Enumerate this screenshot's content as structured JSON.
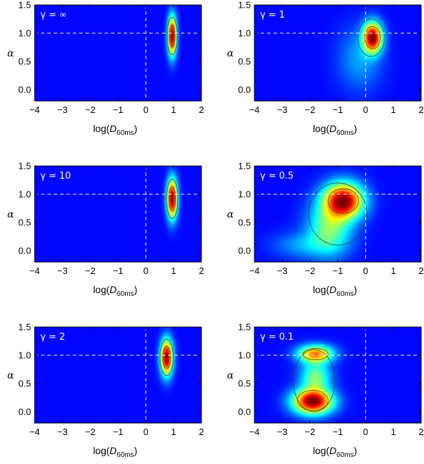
{
  "chart_data": [
    {
      "type": "heatmap",
      "label": "γ = ∞",
      "x_label_main": "log(",
      "x_label_var": "D",
      "x_label_sub": "60ms",
      "x_label_close": ")",
      "ylabel": "α",
      "xlim": [
        -4,
        2
      ],
      "ylim": [
        -0.2,
        1.5
      ],
      "xticks": [
        -4,
        -3,
        -2,
        -1,
        0,
        1,
        2
      ],
      "yticks": [
        0.0,
        0.5,
        1.0,
        1.5
      ],
      "x_tick_labels": [
        "−4",
        "−3",
        "−2",
        "−1",
        "0",
        "1",
        "2"
      ],
      "y_tick_labels": [
        "0.0",
        "0.5",
        "1.0",
        "1.5"
      ],
      "reference_lines": {
        "x": 0,
        "y": 1.0
      },
      "blobs": [
        {
          "cx": 0.95,
          "cy": 0.95,
          "sx": 0.1,
          "sy": 0.22,
          "w": 1.0
        }
      ],
      "contours": [
        {
          "cx": 0.95,
          "cy": 0.95,
          "rx": 0.18,
          "ry": 0.33
        },
        {
          "cx": 0.95,
          "cy": 0.95,
          "rx": 0.1,
          "ry": 0.2
        }
      ]
    },
    {
      "type": "heatmap",
      "label": "γ = 1",
      "x_label_main": "log(",
      "x_label_var": "D",
      "x_label_sub": "60ms",
      "x_label_close": ")",
      "ylabel": "α",
      "xlim": [
        -4,
        2
      ],
      "ylim": [
        -0.2,
        1.5
      ],
      "xticks": [
        -4,
        -3,
        -2,
        -1,
        0,
        1,
        2
      ],
      "yticks": [
        0.0,
        0.5,
        1.0,
        1.5
      ],
      "x_tick_labels": [
        "−4",
        "−3",
        "−2",
        "−1",
        "0",
        "1",
        "2"
      ],
      "y_tick_labels": [
        "0.0",
        "0.5",
        "1.0",
        "1.5"
      ],
      "reference_lines": {
        "x": 0,
        "y": 1.0
      },
      "blobs": [
        {
          "cx": 0.25,
          "cy": 0.92,
          "sx": 0.22,
          "sy": 0.17,
          "w": 1.0
        },
        {
          "cx": -0.2,
          "cy": 0.55,
          "sx": 0.5,
          "sy": 0.35,
          "w": 0.12
        }
      ],
      "contours": [
        {
          "cx": 0.2,
          "cy": 0.92,
          "rx": 0.48,
          "ry": 0.33
        },
        {
          "cx": 0.25,
          "cy": 0.92,
          "rx": 0.28,
          "ry": 0.2
        }
      ]
    },
    {
      "type": "heatmap",
      "label": "γ = 10",
      "x_label_main": "log(",
      "x_label_var": "D",
      "x_label_sub": "60ms",
      "x_label_close": ")",
      "ylabel": "α",
      "xlim": [
        -4,
        2
      ],
      "ylim": [
        -0.2,
        1.5
      ],
      "xticks": [
        -4,
        -3,
        -2,
        -1,
        0,
        1,
        2
      ],
      "yticks": [
        0.0,
        0.5,
        1.0,
        1.5
      ],
      "x_tick_labels": [
        "−4",
        "−3",
        "−2",
        "−1",
        "0",
        "1",
        "2"
      ],
      "y_tick_labels": [
        "0.0",
        "0.5",
        "1.0",
        "1.5"
      ],
      "reference_lines": {
        "x": 0,
        "y": 1.0
      },
      "blobs": [
        {
          "cx": 0.95,
          "cy": 0.92,
          "sx": 0.12,
          "sy": 0.22,
          "w": 1.0
        }
      ],
      "contours": [
        {
          "cx": 0.95,
          "cy": 0.92,
          "rx": 0.2,
          "ry": 0.35
        },
        {
          "cx": 0.95,
          "cy": 0.92,
          "rx": 0.12,
          "ry": 0.22
        }
      ]
    },
    {
      "type": "heatmap",
      "label": "γ = 0.5",
      "x_label_main": "log(",
      "x_label_var": "D",
      "x_label_sub": "60ms",
      "x_label_close": ")",
      "ylabel": "α",
      "xlim": [
        -4,
        2
      ],
      "ylim": [
        -0.2,
        1.5
      ],
      "xticks": [
        -4,
        -3,
        -2,
        -1,
        0,
        1,
        2
      ],
      "yticks": [
        0.0,
        0.5,
        1.0,
        1.5
      ],
      "x_tick_labels": [
        "−4",
        "−3",
        "−2",
        "−1",
        "0",
        "1",
        "2"
      ],
      "y_tick_labels": [
        "0.0",
        "0.5",
        "1.0",
        "1.5"
      ],
      "reference_lines": {
        "x": 0,
        "y": 1.0
      },
      "blobs": [
        {
          "cx": -0.8,
          "cy": 0.88,
          "sx": 0.45,
          "sy": 0.2,
          "w": 1.0
        },
        {
          "cx": -1.3,
          "cy": 0.4,
          "sx": 0.5,
          "sy": 0.3,
          "w": 0.35
        },
        {
          "cx": -2.2,
          "cy": 0.1,
          "sx": 0.7,
          "sy": 0.15,
          "w": 0.12
        }
      ],
      "contours": [
        {
          "cx": -0.8,
          "cy": 0.88,
          "rx": 0.55,
          "ry": 0.22
        },
        {
          "cx": -1.0,
          "cy": 0.65,
          "rx": 1.05,
          "ry": 0.55
        }
      ]
    },
    {
      "type": "heatmap",
      "label": "γ = 2",
      "x_label_main": "log(",
      "x_label_var": "D",
      "x_label_sub": "60ms",
      "x_label_close": ")",
      "ylabel": "α",
      "xlim": [
        -4,
        2
      ],
      "ylim": [
        -0.2,
        1.5
      ],
      "xticks": [
        -4,
        -3,
        -2,
        -1,
        0,
        1,
        2
      ],
      "yticks": [
        0.0,
        0.5,
        1.0,
        1.5
      ],
      "x_tick_labels": [
        "−4",
        "−3",
        "−2",
        "−1",
        "0",
        "1",
        "2"
      ],
      "y_tick_labels": [
        "0.0",
        "0.5",
        "1.0",
        "1.5"
      ],
      "reference_lines": {
        "x": 0,
        "y": 1.0
      },
      "blobs": [
        {
          "cx": 0.75,
          "cy": 0.96,
          "sx": 0.14,
          "sy": 0.2,
          "w": 1.0
        }
      ],
      "contours": [
        {
          "cx": 0.75,
          "cy": 0.96,
          "rx": 0.24,
          "ry": 0.32
        },
        {
          "cx": 0.75,
          "cy": 0.96,
          "rx": 0.14,
          "ry": 0.2
        }
      ]
    },
    {
      "type": "heatmap",
      "label": "γ = 0.1",
      "x_label_main": "log(",
      "x_label_var": "D",
      "x_label_sub": "60ms",
      "x_label_close": ")",
      "ylabel": "α",
      "xlim": [
        -4,
        2
      ],
      "ylim": [
        -0.2,
        1.5
      ],
      "xticks": [
        -4,
        -3,
        -2,
        -1,
        0,
        1,
        2
      ],
      "yticks": [
        0.0,
        0.5,
        1.0,
        1.5
      ],
      "x_tick_labels": [
        "−4",
        "−3",
        "−2",
        "−1",
        "0",
        "1",
        "2"
      ],
      "y_tick_labels": [
        "0.0",
        "0.5",
        "1.0",
        "1.5"
      ],
      "reference_lines": {
        "x": 0,
        "y": 1.0
      },
      "blobs": [
        {
          "cx": -1.9,
          "cy": 0.18,
          "sx": 0.45,
          "sy": 0.14,
          "w": 1.0
        },
        {
          "cx": -1.8,
          "cy": 1.02,
          "sx": 0.4,
          "sy": 0.1,
          "w": 0.65
        },
        {
          "cx": -1.8,
          "cy": 0.6,
          "sx": 0.35,
          "sy": 0.2,
          "w": 0.35
        }
      ],
      "contours": [
        {
          "cx": -1.9,
          "cy": 0.2,
          "rx": 0.55,
          "ry": 0.18
        },
        {
          "cx": -1.8,
          "cy": 1.02,
          "rx": 0.45,
          "ry": 0.1
        },
        {
          "cx": -1.85,
          "cy": 0.55,
          "rx": 0.75,
          "ry": 0.55
        }
      ]
    }
  ]
}
